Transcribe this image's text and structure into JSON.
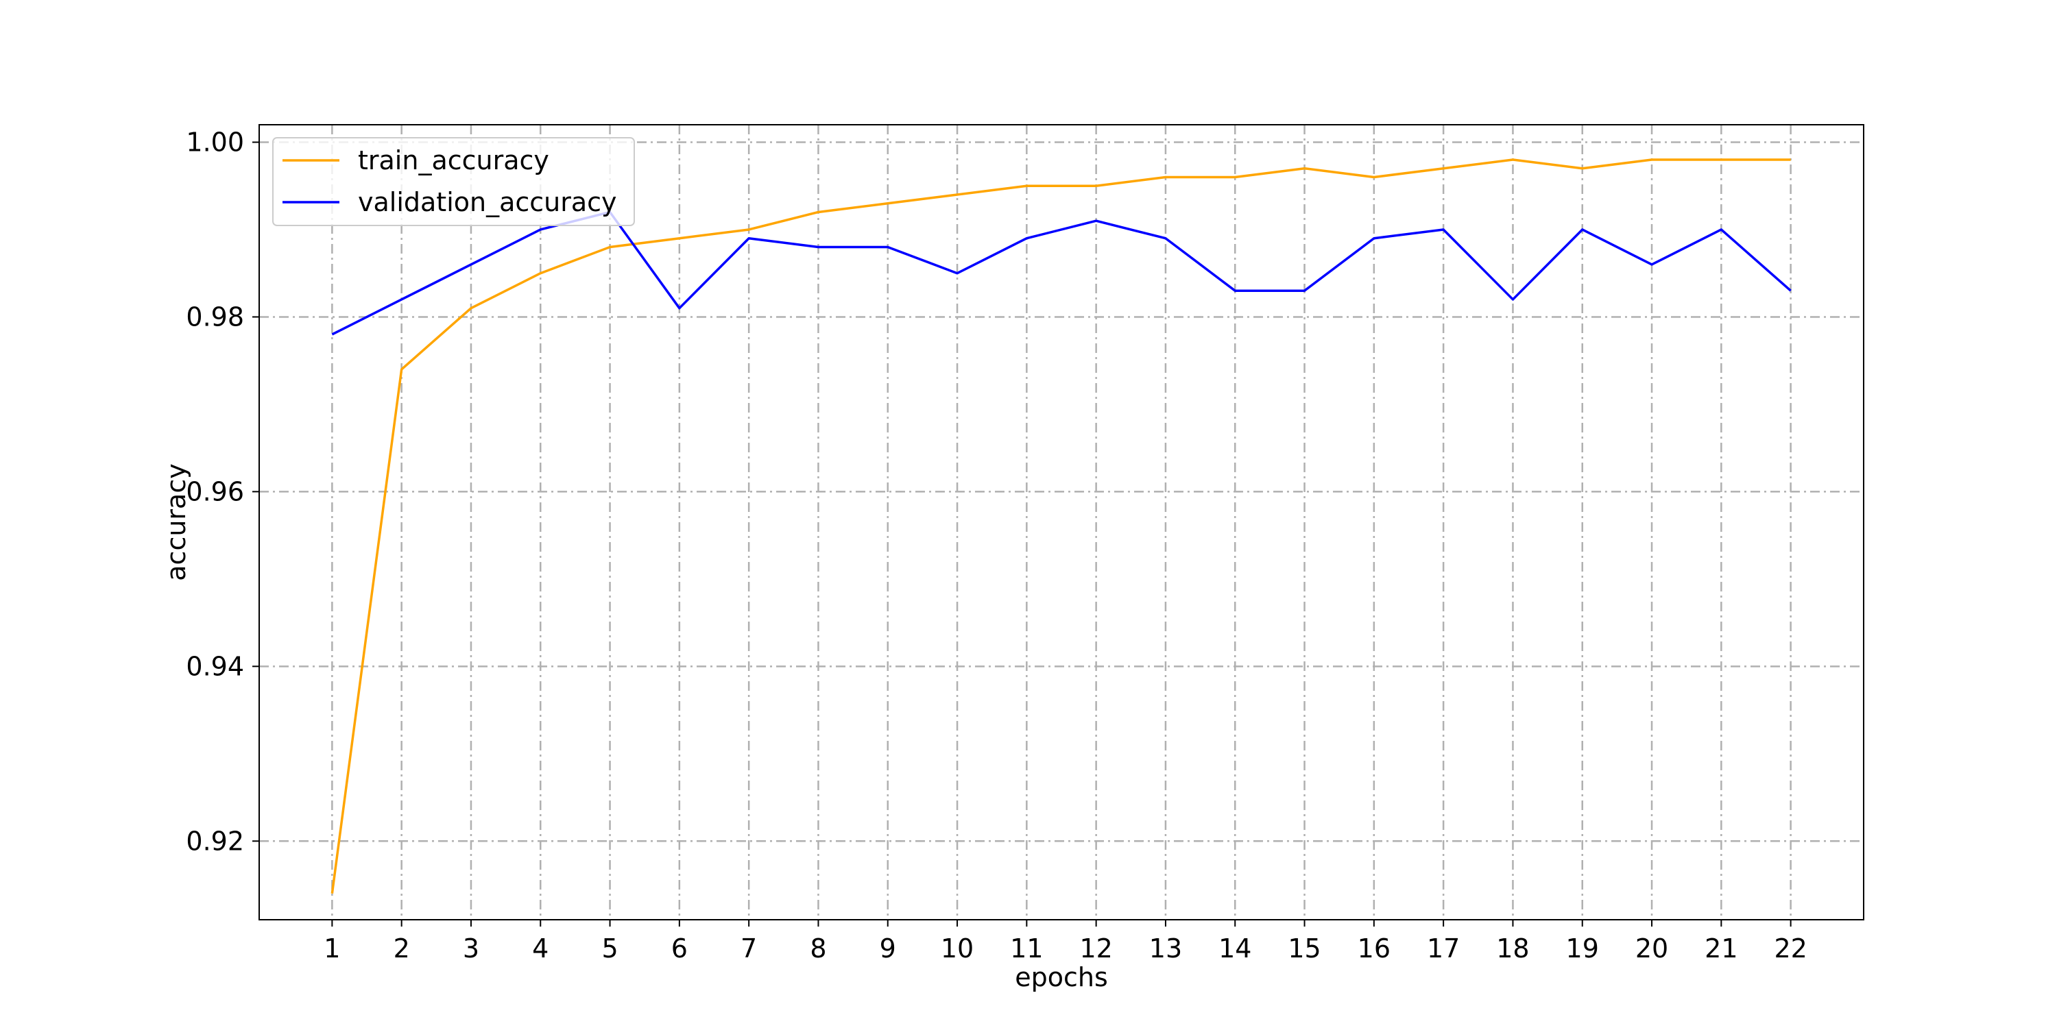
{
  "chart_data": {
    "type": "line",
    "title": "",
    "xlabel": "epochs",
    "ylabel": "accuracy",
    "x": [
      1,
      2,
      3,
      4,
      5,
      6,
      7,
      8,
      9,
      10,
      11,
      12,
      13,
      14,
      15,
      16,
      17,
      18,
      19,
      20,
      21,
      22
    ],
    "xticks": [
      "1",
      "2",
      "3",
      "4",
      "5",
      "6",
      "7",
      "8",
      "9",
      "10",
      "11",
      "12",
      "13",
      "14",
      "15",
      "16",
      "17",
      "18",
      "19",
      "20",
      "21",
      "22"
    ],
    "xlim": [
      -0.05,
      23.05
    ],
    "ylim": [
      0.911,
      1.002
    ],
    "yticks": [
      0.92,
      0.94,
      0.96,
      0.98,
      1.0
    ],
    "ytick_labels": [
      "0.92",
      "0.94",
      "0.96",
      "0.98",
      "1.00"
    ],
    "grid": true,
    "legend_position": "upper left",
    "series": [
      {
        "name": "train_accuracy",
        "color": "#ffa500",
        "values": [
          0.914,
          0.974,
          0.981,
          0.985,
          0.988,
          0.989,
          0.99,
          0.992,
          0.993,
          0.994,
          0.995,
          0.995,
          0.996,
          0.996,
          0.997,
          0.996,
          0.997,
          0.998,
          0.997,
          0.998,
          0.998,
          0.998
        ]
      },
      {
        "name": "validation_accuracy",
        "color": "#0000ff",
        "values": [
          0.978,
          0.982,
          0.986,
          0.99,
          0.992,
          0.981,
          0.989,
          0.988,
          0.988,
          0.985,
          0.989,
          0.991,
          0.989,
          0.983,
          0.983,
          0.989,
          0.99,
          0.982,
          0.99,
          0.986,
          0.99,
          0.983
        ]
      }
    ]
  }
}
